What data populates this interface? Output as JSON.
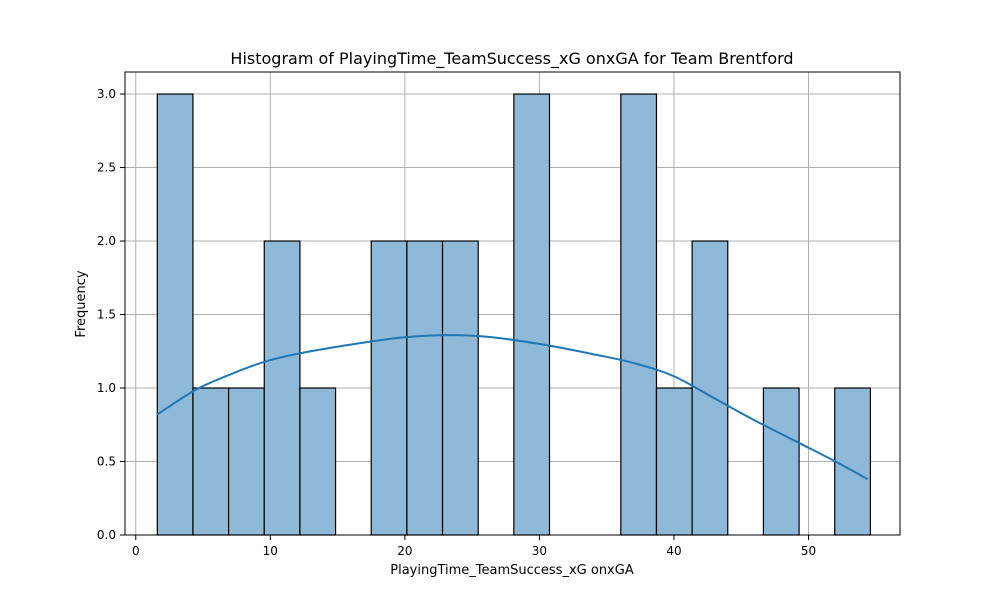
{
  "chart_data": {
    "type": "bar",
    "title": "Histogram of PlayingTime_TeamSuccess_xG onxGA for Team Brentford",
    "xlabel": "PlayingTime_TeamSuccess_xG onxGA",
    "ylabel": "Frequency",
    "xlim": [
      -0.8,
      56.8
    ],
    "ylim": [
      0,
      3.15
    ],
    "grid": true,
    "bins": [
      {
        "x0": 1.6,
        "x1": 4.25,
        "value": 3
      },
      {
        "x0": 4.25,
        "x1": 6.9,
        "value": 1
      },
      {
        "x0": 6.9,
        "x1": 9.55,
        "value": 1
      },
      {
        "x0": 9.55,
        "x1": 12.2,
        "value": 2
      },
      {
        "x0": 12.2,
        "x1": 14.85,
        "value": 1
      },
      {
        "x0": 14.85,
        "x1": 17.5,
        "value": 0
      },
      {
        "x0": 17.5,
        "x1": 20.15,
        "value": 2
      },
      {
        "x0": 20.15,
        "x1": 22.8,
        "value": 2
      },
      {
        "x0": 22.8,
        "x1": 25.45,
        "value": 2
      },
      {
        "x0": 25.45,
        "x1": 28.1,
        "value": 0
      },
      {
        "x0": 28.1,
        "x1": 30.75,
        "value": 3
      },
      {
        "x0": 30.75,
        "x1": 33.4,
        "value": 0
      },
      {
        "x0": 33.4,
        "x1": 36.05,
        "value": 0
      },
      {
        "x0": 36.05,
        "x1": 38.7,
        "value": 3
      },
      {
        "x0": 38.7,
        "x1": 41.35,
        "value": 1
      },
      {
        "x0": 41.35,
        "x1": 44.0,
        "value": 2
      },
      {
        "x0": 44.0,
        "x1": 46.65,
        "value": 0
      },
      {
        "x0": 46.65,
        "x1": 49.3,
        "value": 1
      },
      {
        "x0": 49.3,
        "x1": 51.95,
        "value": 0
      },
      {
        "x0": 51.95,
        "x1": 54.6,
        "value": 1
      }
    ],
    "kde": {
      "x": [
        1.6,
        4.5,
        7.5,
        10,
        13,
        17,
        20,
        23,
        26,
        30,
        34,
        37,
        40,
        43,
        46,
        49,
        52,
        54.4
      ],
      "y": [
        0.82,
        0.99,
        1.11,
        1.19,
        1.25,
        1.31,
        1.345,
        1.36,
        1.35,
        1.3,
        1.23,
        1.17,
        1.08,
        0.93,
        0.78,
        0.64,
        0.5,
        0.38
      ]
    },
    "xticks": [
      0,
      10,
      20,
      30,
      40,
      50
    ],
    "yticks": [
      0.0,
      0.5,
      1.0,
      1.5,
      2.0,
      2.5,
      3.0
    ],
    "colors": {
      "bar_fill": "#8fb9d9",
      "bar_edge": "#000000",
      "kde_line": "#1f77b4",
      "grid": "#b0b0b0"
    }
  }
}
